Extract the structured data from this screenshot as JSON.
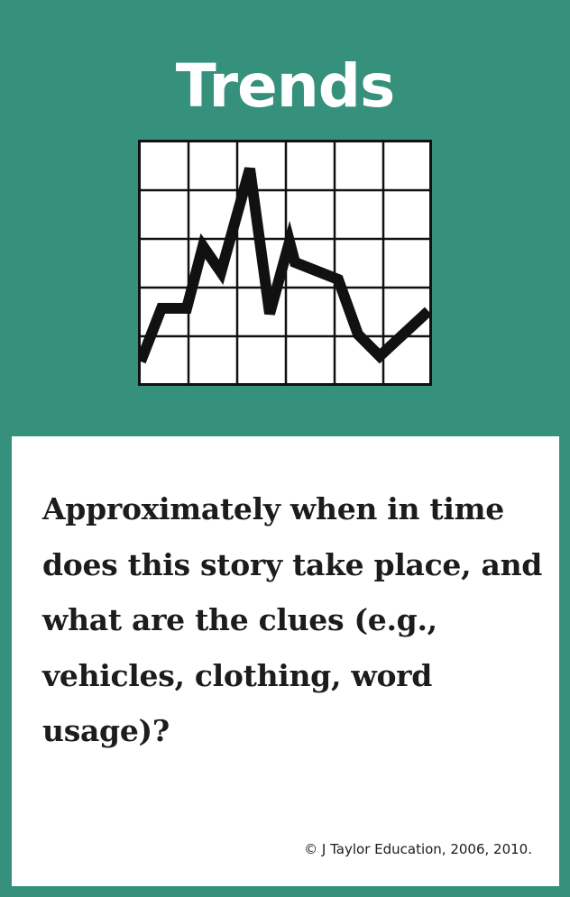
{
  "card": {
    "title": "Trends",
    "icon": "line-chart-icon",
    "question": "Approximately when in time does this story take place, and what are the clues (e.g., vehicles, clothing, word usage)?",
    "copyright": "© J Taylor Education, 2006, 2010."
  },
  "colors": {
    "background": "#35907c",
    "panel": "#ffffff",
    "title_text": "#ffffff",
    "body_text": "#1c1c1c"
  }
}
